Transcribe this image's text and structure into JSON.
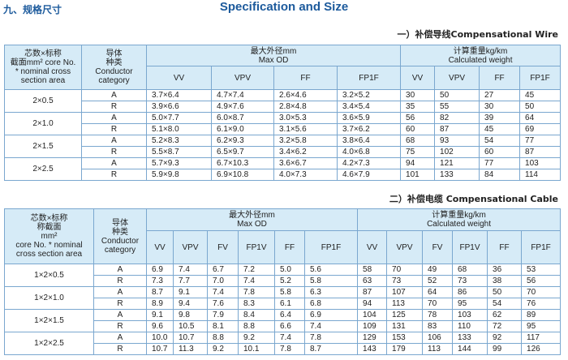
{
  "header": {
    "section": "九、规格尺寸",
    "title": "Specification and Size"
  },
  "tables": [
    {
      "caption": "一）补偿导线Compensational Wire",
      "spec_label": [
        "芯数×标称",
        "截面mm² core No.",
        "* nominal cross",
        "section area"
      ],
      "conductor_label": [
        "导体",
        "种类",
        "Conductor",
        "category"
      ],
      "od_label": [
        "最大外径mm",
        "Max OD"
      ],
      "weight_label": [
        "计算重量kg/km",
        "Calculated weight"
      ],
      "od_columns": [
        "VV",
        "VPV",
        "FF",
        "FP1F"
      ],
      "weight_columns": [
        "VV",
        "VPV",
        "FF",
        "FP1F"
      ],
      "groups": [
        {
          "spec": "2×0.5",
          "rows": [
            {
              "conductor": "A",
              "od": [
                "3.7×6.4",
                "4.7×7.4",
                "2.6×4.6",
                "3.2×5.2"
              ],
              "weight": [
                "30",
                "50",
                "27",
                "45"
              ]
            },
            {
              "conductor": "R",
              "od": [
                "3.9×6.6",
                "4.9×7.6",
                "2.8×4.8",
                "3.4×5.4"
              ],
              "weight": [
                "35",
                "55",
                "30",
                "50"
              ]
            }
          ]
        },
        {
          "spec": "2×1.0",
          "rows": [
            {
              "conductor": "A",
              "od": [
                "5.0×7.7",
                "6.0×8.7",
                "3.0×5.3",
                "3.6×5.9"
              ],
              "weight": [
                "56",
                "82",
                "39",
                "64"
              ]
            },
            {
              "conductor": "R",
              "od": [
                "5.1×8.0",
                "6.1×9.0",
                "3.1×5.6",
                "3.7×6.2"
              ],
              "weight": [
                "60",
                "87",
                "45",
                "69"
              ]
            }
          ]
        },
        {
          "spec": "2×1.5",
          "rows": [
            {
              "conductor": "A",
              "od": [
                "5.2×8.3",
                "6.2×9.3",
                "3.2×5.8",
                "3.8×6.4"
              ],
              "weight": [
                "68",
                "93",
                "54",
                "77"
              ]
            },
            {
              "conductor": "R",
              "od": [
                "5.5×8.7",
                "6.5×9.7",
                "3.4×6.2",
                "4.0×6.8"
              ],
              "weight": [
                "75",
                "102",
                "60",
                "87"
              ]
            }
          ]
        },
        {
          "spec": "2×2.5",
          "rows": [
            {
              "conductor": "A",
              "od": [
                "5.7×9.3",
                "6.7×10.3",
                "3.6×6.7",
                "4.2×7.3"
              ],
              "weight": [
                "94",
                "121",
                "77",
                "103"
              ]
            },
            {
              "conductor": "R",
              "od": [
                "5.9×9.8",
                "6.9×10.8",
                "4.0×7.3",
                "4.6×7.9"
              ],
              "weight": [
                "101",
                "133",
                "84",
                "114"
              ]
            }
          ]
        }
      ]
    },
    {
      "caption": "二）补偿电缆 Compensational Cable",
      "spec_label": [
        "芯数×标称",
        "称截面",
        "mm²",
        "core No. * nominal",
        "cross section area"
      ],
      "conductor_label": [
        "导体",
        "种类",
        "Conductor",
        "category"
      ],
      "od_label": [
        "最大外径mm",
        "Max OD"
      ],
      "weight_label": [
        "计算重量kg/km",
        "Calculated weight"
      ],
      "od_columns": [
        "VV",
        "VPV",
        "FV",
        "FP1V",
        "FF",
        "FP1F"
      ],
      "weight_columns": [
        "VV",
        "VPV",
        "FV",
        "FP1V",
        "FF",
        "FP1F"
      ],
      "groups": [
        {
          "spec": "1×2×0.5",
          "rows": [
            {
              "conductor": "A",
              "od": [
                "6.9",
                "7.4",
                "6.7",
                "7.2",
                "5.0",
                "5.6"
              ],
              "weight": [
                "58",
                "70",
                "49",
                "68",
                "36",
                "53"
              ]
            },
            {
              "conductor": "R",
              "od": [
                "7.3",
                "7.7",
                "7.0",
                "7.4",
                "5.2",
                "5.8"
              ],
              "weight": [
                "63",
                "73",
                "52",
                "73",
                "38",
                "56"
              ]
            }
          ]
        },
        {
          "spec": "1×2×1.0",
          "rows": [
            {
              "conductor": "A",
              "od": [
                "8.7",
                "9.1",
                "7.4",
                "7.8",
                "5.8",
                "6.3"
              ],
              "weight": [
                "87",
                "107",
                "64",
                "86",
                "50",
                "70"
              ]
            },
            {
              "conductor": "R",
              "od": [
                "8.9",
                "9.4",
                "7.6",
                "8.3",
                "6.1",
                "6.8"
              ],
              "weight": [
                "94",
                "113",
                "70",
                "95",
                "54",
                "76"
              ]
            }
          ]
        },
        {
          "spec": "1×2×1.5",
          "rows": [
            {
              "conductor": "A",
              "od": [
                "9.1",
                "9.8",
                "7.9",
                "8.4",
                "6.4",
                "6.9"
              ],
              "weight": [
                "104",
                "125",
                "78",
                "103",
                "62",
                "89"
              ]
            },
            {
              "conductor": "R",
              "od": [
                "9.6",
                "10.5",
                "8.1",
                "8.8",
                "6.6",
                "7.4"
              ],
              "weight": [
                "109",
                "131",
                "83",
                "110",
                "72",
                "95"
              ]
            }
          ]
        },
        {
          "spec": "1×2×2.5",
          "rows": [
            {
              "conductor": "A",
              "od": [
                "10.0",
                "10.7",
                "8.8",
                "9.2",
                "7.4",
                "7.8"
              ],
              "weight": [
                "129",
                "153",
                "106",
                "133",
                "92",
                "117"
              ]
            },
            {
              "conductor": "R",
              "od": [
                "10.7",
                "11.3",
                "9.2",
                "10.1",
                "7.8",
                "8.7"
              ],
              "weight": [
                "143",
                "179",
                "113",
                "144",
                "99",
                "126"
              ]
            }
          ]
        }
      ]
    }
  ]
}
